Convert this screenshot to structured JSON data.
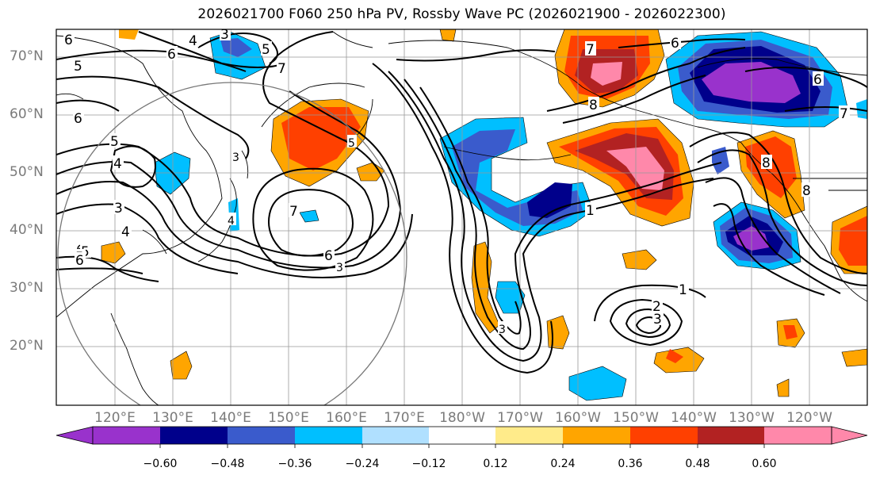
{
  "title": "2026021700 F060 250 hPa PV, Rossby Wave PC (2026021900 - 2026022300)",
  "lat_labels": [
    "70°N",
    "60°N",
    "50°N",
    "40°N",
    "30°N",
    "20°N"
  ],
  "lon_labels": [
    "120°E",
    "130°E",
    "140°E",
    "150°E",
    "160°E",
    "170°E",
    "180°W",
    "170°W",
    "160°W",
    "150°W",
    "140°W",
    "130°W",
    "120°W"
  ],
  "colorbar": {
    "ticks": [
      "−0.60",
      "−0.48",
      "−0.36",
      "−0.24",
      "−0.12",
      "0.12",
      "0.24",
      "0.36",
      "0.48",
      "0.60"
    ],
    "colors": [
      "#9932cc",
      "#00008b",
      "#3a5bcc",
      "#00bfff",
      "#b0e0ff",
      "#ffffff",
      "#ffeb8a",
      "#ffa500",
      "#ff4000",
      "#b22222",
      "#ff88aa"
    ]
  },
  "contour_labels": [
    "6",
    "4",
    "3",
    "5",
    "6",
    "7",
    "6",
    "5",
    "6",
    "5",
    "5",
    "4",
    "3",
    "4",
    "3",
    "4",
    "5",
    "6",
    "5",
    "7",
    "6",
    "3",
    "7",
    "8",
    "6",
    "1",
    "3",
    "1",
    "2",
    "3",
    "8",
    "8",
    "7",
    "6"
  ]
}
